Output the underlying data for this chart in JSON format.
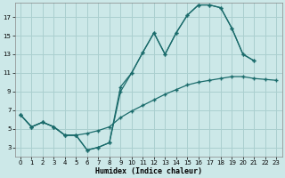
{
  "title": "",
  "xlabel": "Humidex (Indice chaleur)",
  "background_color": "#cce8e8",
  "grid_color": "#aacfcf",
  "line_color": "#1a6b6b",
  "xlim": [
    -0.5,
    23.5
  ],
  "ylim": [
    2.0,
    18.5
  ],
  "yticks": [
    3,
    5,
    7,
    9,
    11,
    13,
    15,
    17
  ],
  "xticks": [
    0,
    1,
    2,
    3,
    4,
    5,
    6,
    7,
    8,
    9,
    10,
    11,
    12,
    13,
    14,
    15,
    16,
    17,
    18,
    19,
    20,
    21,
    22,
    23
  ],
  "line1_x": [
    0,
    1,
    2,
    3,
    4,
    5,
    6,
    7,
    8,
    9,
    10,
    11,
    12,
    13,
    14,
    15,
    16,
    17,
    18,
    19,
    20,
    21
  ],
  "line1_y": [
    6.5,
    5.2,
    5.7,
    5.2,
    4.3,
    4.3,
    2.7,
    3.0,
    3.5,
    9.5,
    11.0,
    13.2,
    15.3,
    13.0,
    15.3,
    17.2,
    18.3,
    18.3,
    18.0,
    15.8,
    13.0,
    12.3
  ],
  "line2_x": [
    0,
    1,
    2,
    3,
    4,
    5,
    6,
    7,
    8,
    9,
    10,
    11,
    12,
    13,
    14,
    15,
    16,
    17,
    18,
    19,
    20,
    21
  ],
  "line2_y": [
    6.5,
    5.2,
    5.7,
    5.2,
    4.3,
    4.3,
    2.7,
    3.0,
    3.5,
    9.0,
    11.0,
    13.2,
    15.3,
    13.0,
    15.3,
    17.2,
    18.3,
    18.3,
    18.0,
    15.8,
    13.0,
    12.3
  ],
  "line3_x": [
    0,
    1,
    2,
    3,
    4,
    5,
    6,
    7,
    8,
    9,
    10,
    11,
    12,
    13,
    14,
    15,
    16,
    17,
    18,
    19,
    20,
    21,
    22,
    23
  ],
  "line3_y": [
    6.5,
    5.2,
    5.7,
    5.2,
    4.3,
    4.3,
    4.5,
    4.8,
    5.2,
    6.2,
    6.9,
    7.5,
    8.1,
    8.7,
    9.2,
    9.7,
    10.0,
    10.2,
    10.4,
    10.6,
    10.6,
    10.4,
    10.3,
    10.2
  ]
}
